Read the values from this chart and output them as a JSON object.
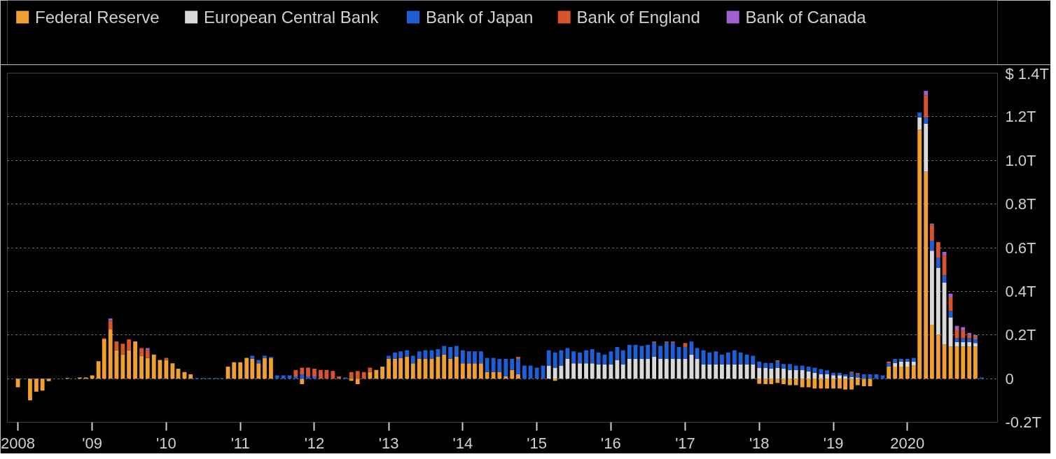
{
  "chart_data": {
    "type": "bar",
    "stacked": true,
    "x": [
      "2008-01",
      "2008-02",
      "2008-03",
      "2008-04",
      "2008-05",
      "2008-06",
      "2008-07",
      "2008-08",
      "2008-09",
      "2008-10",
      "2008-11",
      "2008-12",
      "2009-01",
      "2009-02",
      "2009-03",
      "2009-04",
      "2009-05",
      "2009-06",
      "2009-07",
      "2009-08",
      "2009-09",
      "2009-10",
      "2009-11",
      "2009-12",
      "2010-01",
      "2010-02",
      "2010-03",
      "2010-04",
      "2010-05",
      "2010-06",
      "2010-07",
      "2010-08",
      "2010-09",
      "2010-10",
      "2010-11",
      "2010-12",
      "2011-01",
      "2011-02",
      "2011-03",
      "2011-04",
      "2011-05",
      "2011-06",
      "2011-07",
      "2011-08",
      "2011-09",
      "2011-10",
      "2011-11",
      "2011-12",
      "2012-01",
      "2012-02",
      "2012-03",
      "2012-04",
      "2012-05",
      "2012-06",
      "2012-07",
      "2012-08",
      "2012-09",
      "2012-10",
      "2012-11",
      "2012-12",
      "2013-01",
      "2013-02",
      "2013-03",
      "2013-04",
      "2013-05",
      "2013-06",
      "2013-07",
      "2013-08",
      "2013-09",
      "2013-10",
      "2013-11",
      "2013-12",
      "2014-01",
      "2014-02",
      "2014-03",
      "2014-04",
      "2014-05",
      "2014-06",
      "2014-07",
      "2014-08",
      "2014-09",
      "2014-10",
      "2014-11",
      "2014-12",
      "2015-01",
      "2015-02",
      "2015-03",
      "2015-04",
      "2015-05",
      "2015-06",
      "2015-07",
      "2015-08",
      "2015-09",
      "2015-10",
      "2015-11",
      "2015-12",
      "2016-01",
      "2016-02",
      "2016-03",
      "2016-04",
      "2016-05",
      "2016-06",
      "2016-07",
      "2016-08",
      "2016-09",
      "2016-10",
      "2016-11",
      "2016-12",
      "2017-01",
      "2017-02",
      "2017-03",
      "2017-04",
      "2017-05",
      "2017-06",
      "2017-07",
      "2017-08",
      "2017-09",
      "2017-10",
      "2017-11",
      "2017-12",
      "2018-01",
      "2018-02",
      "2018-03",
      "2018-04",
      "2018-05",
      "2018-06",
      "2018-07",
      "2018-08",
      "2018-09",
      "2018-10",
      "2018-11",
      "2018-12",
      "2019-01",
      "2019-02",
      "2019-03",
      "2019-04",
      "2019-05",
      "2019-06",
      "2019-07",
      "2019-08",
      "2019-09",
      "2019-10",
      "2019-11",
      "2019-12",
      "2020-01",
      "2020-02",
      "2020-03",
      "2020-04",
      "2020-05",
      "2020-06",
      "2020-07",
      "2020-08",
      "2020-09",
      "2020-10",
      "2020-11",
      "2020-12",
      "2021-01"
    ],
    "series": [
      {
        "name": "Federal Reserve",
        "color": "#f0a030",
        "values": [
          -0.04,
          0,
          -0.1,
          -0.06,
          -0.055,
          -0.012,
          0,
          0,
          0.003,
          0,
          0.005,
          0.005,
          0.015,
          0.08,
          0.18,
          0.225,
          0.13,
          0.11,
          0.13,
          0.17,
          0.105,
          0.095,
          0.11,
          0.085,
          0.085,
          0.07,
          0.045,
          0.03,
          0.02,
          0,
          0,
          0,
          0,
          0,
          0.055,
          0.075,
          0.075,
          0.095,
          0.09,
          0.07,
          0.095,
          0.095,
          0,
          0,
          0,
          0,
          -0.025,
          0,
          0,
          0,
          0,
          0,
          0,
          0,
          -0.01,
          -0.025,
          0,
          0.03,
          0.04,
          0.055,
          0.09,
          0.09,
          0.095,
          0.1,
          0.07,
          0.09,
          0.09,
          0.09,
          0.1,
          0.11,
          0.09,
          0.1,
          0.07,
          0.07,
          0.07,
          0.07,
          0.03,
          0.03,
          0.03,
          0.01,
          0.04,
          0.02,
          0,
          0,
          0,
          0,
          0,
          -0.01,
          0,
          0,
          0,
          0,
          0,
          0,
          0,
          0,
          0,
          0,
          0,
          0,
          0,
          0,
          0,
          0,
          0,
          0,
          0,
          0,
          0,
          0,
          0,
          0,
          0,
          0,
          0,
          0,
          0,
          0,
          0,
          0,
          -0.024,
          -0.025,
          -0.025,
          -0.02,
          -0.025,
          -0.03,
          -0.03,
          -0.04,
          -0.04,
          -0.045,
          -0.045,
          -0.045,
          -0.045,
          -0.045,
          -0.05,
          -0.05,
          -0.03,
          -0.035,
          -0.035,
          0,
          0,
          0.055,
          0.055,
          0.055,
          0.055,
          0.06,
          1.14,
          0.948,
          0.247,
          0.202,
          0.157,
          0.146,
          0.146,
          0.146,
          0.146,
          0.146,
          0
        ]
      },
      {
        "name": "European Central Bank",
        "color": "#d9d9d9",
        "values": [
          0,
          0,
          0,
          0,
          0,
          0,
          0,
          0,
          0,
          0,
          0,
          0,
          0,
          0,
          0,
          0,
          0,
          0,
          0,
          0,
          0,
          0,
          0,
          0,
          0,
          0,
          0,
          0,
          0,
          0,
          0,
          0,
          0,
          0,
          0,
          0,
          0,
          0,
          0,
          0,
          0,
          0,
          0,
          0,
          0,
          0,
          0,
          0,
          0,
          0,
          0,
          0,
          0,
          0,
          0,
          0,
          0,
          0,
          0,
          0,
          0,
          0,
          0,
          0,
          0,
          0,
          0,
          0,
          0,
          0,
          0,
          0,
          0,
          0,
          0,
          0,
          0,
          0,
          0,
          0,
          0,
          0,
          0,
          0,
          0,
          0,
          0.06,
          0.05,
          0.06,
          0.09,
          0.07,
          0.07,
          0.07,
          0.07,
          0.065,
          0.065,
          0.065,
          0.085,
          0.065,
          0.09,
          0.09,
          0.09,
          0.09,
          0.1,
          0.09,
          0.09,
          0.09,
          0.09,
          0.09,
          0.11,
          0.09,
          0.065,
          0.065,
          0.065,
          0.065,
          0.065,
          0.065,
          0.065,
          0.065,
          0.065,
          0.05,
          0.05,
          0.045,
          0.05,
          0.045,
          0.04,
          0.04,
          0.04,
          0.033,
          0.027,
          0.02,
          0.02,
          0.016,
          0.016,
          0.01,
          0.008,
          0.005,
          0,
          0,
          0,
          0,
          0,
          0.017,
          0.023,
          0.023,
          0.018,
          0.057,
          0.22,
          0.339,
          0.305,
          0.283,
          0.135,
          0.022,
          0.022,
          0.022,
          0.017,
          0
        ]
      },
      {
        "name": "Bank of Japan",
        "color": "#1f5fd6",
        "values": [
          0,
          0,
          0,
          0,
          0,
          0,
          0,
          0,
          0,
          0,
          0,
          0,
          0,
          0,
          0,
          0,
          0,
          0,
          0,
          0,
          0,
          0,
          0,
          0,
          0,
          0,
          0,
          0,
          0,
          0.003,
          0.003,
          0.003,
          0.003,
          0.003,
          0,
          0,
          0,
          0,
          0.015,
          0.015,
          0.01,
          0.005,
          0.015,
          0.015,
          0.015,
          0.01,
          0.02,
          0.01,
          0.01,
          0,
          0,
          0,
          0,
          0.005,
          0,
          0,
          0,
          0,
          0,
          0,
          0.015,
          0.03,
          0.03,
          0.03,
          0.035,
          0.035,
          0.04,
          0.04,
          0.035,
          0.04,
          0.055,
          0.05,
          0.06,
          0.055,
          0.055,
          0.055,
          0.065,
          0.065,
          0.06,
          0.08,
          0.05,
          0.07,
          0.06,
          0.06,
          0.05,
          0.06,
          0.07,
          0.07,
          0.07,
          0.05,
          0.055,
          0.05,
          0.06,
          0.065,
          0.055,
          0.045,
          0.06,
          0.06,
          0.065,
          0.065,
          0.065,
          0.06,
          0.065,
          0.065,
          0.06,
          0.075,
          0.075,
          0.055,
          0.055,
          0.06,
          0.05,
          0.065,
          0.055,
          0.06,
          0.045,
          0.055,
          0.065,
          0.055,
          0.045,
          0.04,
          0.028,
          0.022,
          0.027,
          0.028,
          0.022,
          0.027,
          0.02,
          0.02,
          0.022,
          0.023,
          0.024,
          0.018,
          0.011,
          0.011,
          0.01,
          0.019,
          0.015,
          0.02,
          0.02,
          0.02,
          0.015,
          0.015,
          0.018,
          0.012,
          0.012,
          0.017,
          0.023,
          0.029,
          0.046,
          0.046,
          0.033,
          0.029,
          0.017,
          0.017,
          0.017,
          0.017,
          0.005
        ]
      },
      {
        "name": "Bank of England",
        "color": "#d9542a",
        "values": [
          0,
          0,
          0,
          0,
          0,
          0,
          0,
          0,
          0,
          0,
          0,
          0,
          0,
          0,
          0.005,
          0.04,
          0.04,
          0.05,
          0.05,
          0,
          0.035,
          0.035,
          0,
          0,
          0.01,
          0,
          0,
          0,
          0,
          0,
          0,
          0,
          0,
          0,
          0,
          0,
          0,
          0,
          0,
          0,
          0,
          0,
          0,
          0,
          0,
          0.03,
          0.03,
          0.04,
          0.035,
          0.04,
          0.04,
          0.035,
          0.01,
          0,
          0.03,
          0.035,
          0.03,
          0.02,
          0,
          0,
          0,
          0,
          0,
          0,
          0,
          0,
          0,
          0,
          0,
          0,
          0,
          0,
          0,
          0,
          0,
          0,
          0,
          0,
          0,
          0,
          0,
          0.01,
          0,
          0,
          0,
          0,
          0,
          0,
          0,
          0,
          0,
          0,
          0,
          0,
          0,
          0,
          0,
          0,
          0,
          0,
          0,
          0,
          0,
          0.005,
          0,
          0.005,
          0.005,
          0,
          0.018,
          0,
          0,
          0,
          0,
          0,
          0,
          0,
          0,
          0,
          0,
          0,
          0,
          0,
          0,
          0.006,
          0,
          0,
          0,
          0,
          0,
          0,
          0,
          0,
          0,
          0,
          0,
          0.005,
          0.005,
          0,
          0,
          0,
          0,
          0.008,
          0,
          0,
          0,
          0,
          0,
          0.1,
          0.073,
          0.073,
          0.091,
          0.062,
          0.04,
          0.034,
          0.015,
          0.01,
          0
        ]
      },
      {
        "name": "Bank of Canada",
        "color": "#a35fd0",
        "values": [
          0,
          0,
          0,
          0,
          0,
          0,
          0,
          0,
          0,
          0,
          0,
          0,
          0,
          0,
          0,
          0.01,
          0,
          0,
          0,
          0,
          0,
          0.01,
          0,
          0,
          0,
          0,
          0,
          0,
          0,
          0,
          0,
          0,
          0,
          0,
          0,
          0,
          0,
          0,
          0,
          0,
          0,
          0,
          0,
          0,
          0,
          0,
          0,
          0,
          0,
          0,
          0,
          0,
          0,
          0,
          0,
          0,
          0,
          0,
          0,
          0,
          0,
          0,
          0,
          0,
          0,
          0,
          0,
          0,
          0,
          0,
          0,
          0,
          0,
          0,
          0,
          0,
          0,
          0,
          0,
          0,
          0,
          0,
          0,
          0,
          0,
          0,
          0,
          0,
          0,
          0,
          0,
          0,
          0,
          0,
          0,
          0,
          0,
          0,
          0,
          0,
          0,
          0,
          0,
          0,
          0,
          0,
          0,
          0,
          0,
          0,
          0,
          0,
          0,
          0,
          0,
          0,
          0,
          0,
          0,
          0,
          0,
          0,
          0,
          0,
          0,
          0,
          0,
          0,
          0,
          0,
          0,
          0,
          0,
          0,
          0,
          0,
          0,
          0,
          0,
          0,
          0,
          0,
          0,
          0,
          0,
          0,
          0,
          0.022,
          0.006,
          0,
          0.017,
          0.017,
          0.017,
          0.017,
          0.01,
          0.01,
          0
        ]
      }
    ],
    "xlim": [
      "2007-11-10",
      "2021-03-20"
    ],
    "xticks": [
      {
        "value": "2008-01",
        "label": "2008"
      },
      {
        "value": "2009-01",
        "label": "'09"
      },
      {
        "value": "2010-01",
        "label": "'10"
      },
      {
        "value": "2011-01",
        "label": "'11"
      },
      {
        "value": "2012-01",
        "label": "'12"
      },
      {
        "value": "2013-01",
        "label": "'13"
      },
      {
        "value": "2014-01",
        "label": "'14"
      },
      {
        "value": "2015-01",
        "label": "'15"
      },
      {
        "value": "2016-01",
        "label": "'16"
      },
      {
        "value": "2017-01",
        "label": "'17"
      },
      {
        "value": "2018-01",
        "label": "'18"
      },
      {
        "value": "2019-01",
        "label": "'19"
      },
      {
        "value": "2020-01",
        "label": "2020"
      }
    ],
    "ylim": [
      -0.2,
      1.4
    ],
    "yticks": [
      {
        "value": -0.2,
        "label": "-0.2T"
      },
      0,
      {
        "value": 0.2,
        "label": "0.2T"
      },
      {
        "value": 0.4,
        "label": "0.4T"
      },
      {
        "value": 0.6,
        "label": "0.6T"
      },
      {
        "value": 0.8,
        "label": "0.8T"
      },
      {
        "value": 1.0,
        "label": "1.0T"
      },
      {
        "value": 1.2,
        "label": "1.2T"
      },
      {
        "value": 1.4,
        "label": "$ 1.4T"
      }
    ],
    "grid": "y",
    "legend": "top"
  }
}
